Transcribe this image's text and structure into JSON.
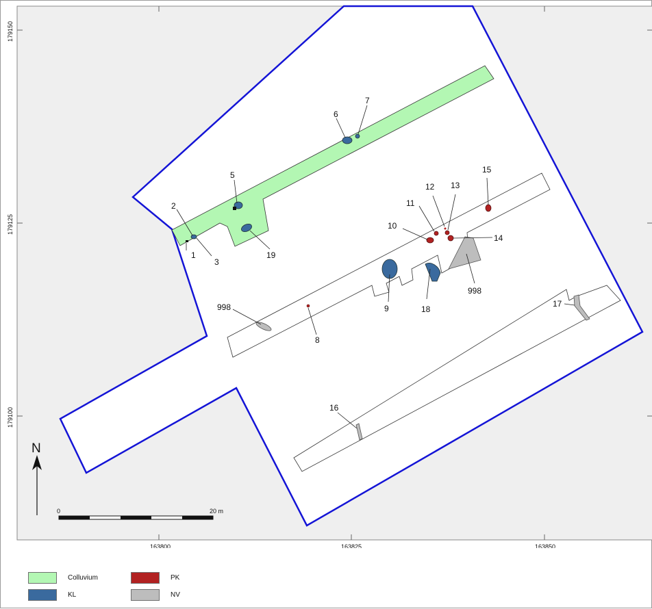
{
  "map": {
    "y_ticks": [
      "179150",
      "179125",
      "179100"
    ],
    "x_ticks": [
      "163800",
      "163825",
      "163850"
    ],
    "north_label": "N",
    "scalebar": {
      "start_label": "0",
      "end_label": "20 m"
    },
    "feature_labels": {
      "f1": "1",
      "f2": "2",
      "f3": "3",
      "f5": "5",
      "f6": "6",
      "f7": "7",
      "f8": "8",
      "f9": "9",
      "f10": "10",
      "f11": "11",
      "f12": "12",
      "f13": "13",
      "f14": "14",
      "f15": "15",
      "f16": "16",
      "f17": "17",
      "f18": "18",
      "f19": "19",
      "f998a": "998",
      "f998b": "998"
    }
  },
  "legend": [
    {
      "label": "Colluvium",
      "color": "#b3f7b3"
    },
    {
      "label": "PK",
      "color": "#b22222"
    },
    {
      "label": "KL",
      "color": "#3a6a9e"
    },
    {
      "label": "NV",
      "color": "#bdbdbd"
    }
  ],
  "colors": {
    "background": "#efefef",
    "excavation_boundary": "#1414d6",
    "colluvium": "#b3f7b3",
    "kl": "#3a6a9e",
    "pk": "#b22222",
    "nv": "#bdbdbd"
  }
}
